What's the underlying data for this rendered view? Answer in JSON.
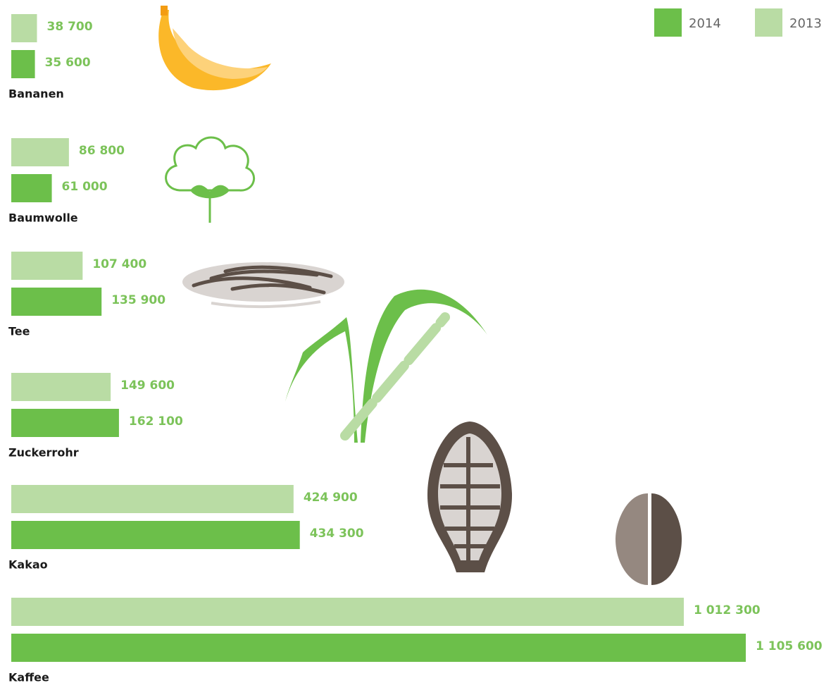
{
  "chart_data": {
    "type": "bar",
    "orientation": "horizontal",
    "categories": [
      "Bananen",
      "Baumwolle",
      "Tee",
      "Zuckerrohr",
      "Kakao",
      "Kaffee"
    ],
    "series": [
      {
        "name": "2013",
        "color": "#b9dca4",
        "values": [
          38700,
          86800,
          107400,
          149600,
          424900,
          1012300
        ],
        "value_labels": [
          "38 700",
          "86 800",
          "107 400",
          "149 600",
          "424 900",
          "1 012 300"
        ]
      },
      {
        "name": "2014",
        "color": "#6cbf4a",
        "values": [
          35600,
          61000,
          135900,
          162100,
          434300,
          1105600
        ],
        "value_labels": [
          "35 600",
          "61 000",
          "135 900",
          "162 100",
          "434 300",
          "1 105 600"
        ]
      }
    ],
    "legend": "top-right"
  }
}
